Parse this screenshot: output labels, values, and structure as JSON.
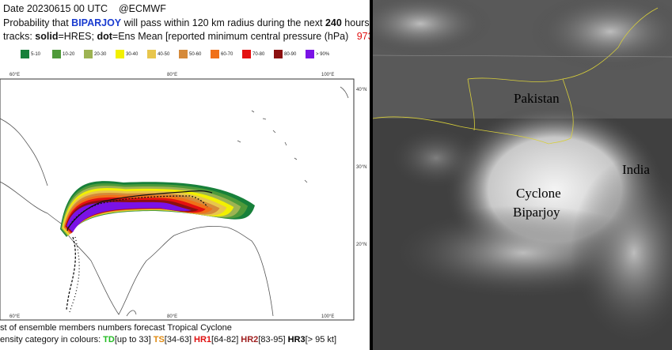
{
  "header": {
    "date": "Date 20230615 00 UTC",
    "source": "@ECMWF",
    "line2": [
      "Probability that",
      "BIPARJOY",
      "will pass within 120 km radius during the next",
      "240",
      "hours"
    ],
    "line3": [
      "tracks:",
      "solid",
      "=HRES;",
      "dot",
      "=Ens Mean [reported minimum central pressure (hPa)",
      "973"
    ]
  },
  "legend": [
    {
      "label": "5-10",
      "color": "#17803a"
    },
    {
      "label": "10-20",
      "color": "#4f9a3a"
    },
    {
      "label": "20-30",
      "color": "#9db352"
    },
    {
      "label": "30-40",
      "color": "#f2f000"
    },
    {
      "label": "40-50",
      "color": "#e8c64c"
    },
    {
      "label": "50-60",
      "color": "#d58a3a"
    },
    {
      "label": "60-70",
      "color": "#f07018"
    },
    {
      "label": "70-80",
      "color": "#e41010"
    },
    {
      "label": "80-90",
      "color": "#8c1010"
    },
    {
      "label": "> 90%",
      "color": "#7a12e6"
    }
  ],
  "map": {
    "lon_top": [
      "60°E",
      "80°E",
      "100°E"
    ],
    "lon_bottom": [
      "60°E",
      "80°E",
      "100°E"
    ],
    "lat": [
      "40°N",
      "30°N",
      "20°N"
    ]
  },
  "footer": {
    "line1": "st of ensemble members numbers forecast Tropical Cyclone",
    "line2": [
      {
        "text": "ensity category in colours:",
        "color": "#111"
      },
      {
        "text": "TD",
        "color": "#22bb22"
      },
      {
        "text": "[up to 33]",
        "color": "#111"
      },
      {
        "text": "TS",
        "color": "#e08a10"
      },
      {
        "text": "[34-63]",
        "color": "#111"
      },
      {
        "text": "HR1",
        "color": "#e01010"
      },
      {
        "text": "[64-82]",
        "color": "#111"
      },
      {
        "text": "HR2",
        "color": "#a02020"
      },
      {
        "text": "[83-95]",
        "color": "#111"
      },
      {
        "text": "HR3",
        "color": "#000"
      },
      {
        "text": "[> 95 kt]",
        "color": "#111"
      }
    ]
  },
  "satellite": {
    "labels": [
      "Pakistan",
      "India",
      "Cyclone",
      "Biparjoy"
    ]
  }
}
